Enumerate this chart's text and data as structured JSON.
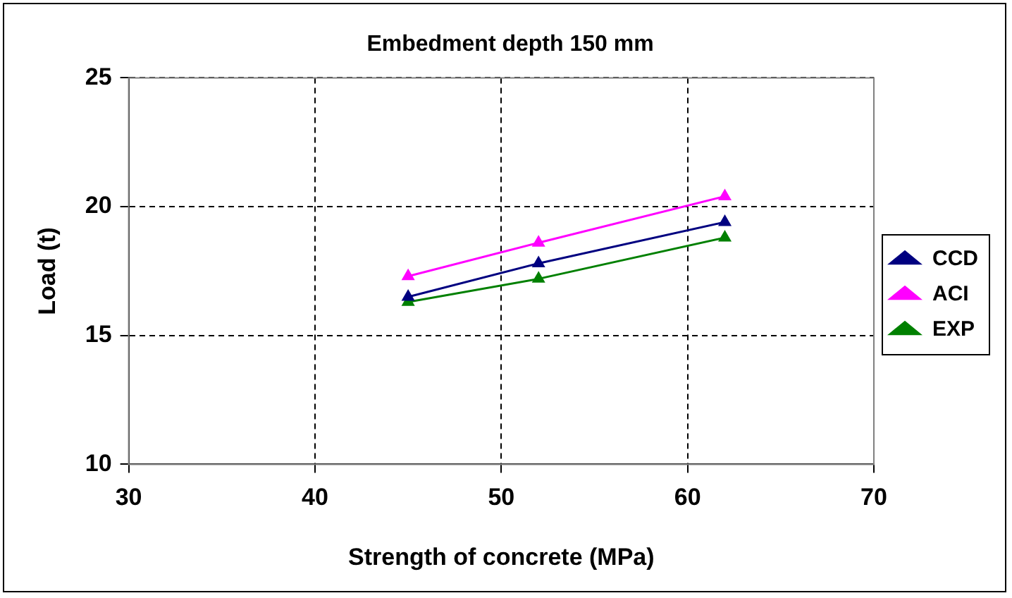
{
  "chart_data": {
    "type": "line",
    "title": "Embedment depth 150 mm",
    "xlabel": "Strength of concrete (MPa)",
    "ylabel": "Load (t)",
    "x": [
      45,
      52,
      62
    ],
    "series": [
      {
        "name": "CCD",
        "color": "#000080",
        "values": [
          16.5,
          17.8,
          19.4
        ]
      },
      {
        "name": "ACI",
        "color": "#ff00ff",
        "values": [
          17.3,
          18.6,
          20.4
        ]
      },
      {
        "name": "EXP",
        "color": "#008000",
        "values": [
          16.3,
          17.2,
          18.8
        ]
      }
    ],
    "xlim": [
      30,
      70
    ],
    "xticks": [
      30,
      40,
      50,
      60,
      70
    ],
    "ylim": [
      10,
      25
    ],
    "yticks": [
      10,
      15,
      20,
      25
    ],
    "grid": true,
    "legend": "right",
    "marker": "triangle"
  }
}
